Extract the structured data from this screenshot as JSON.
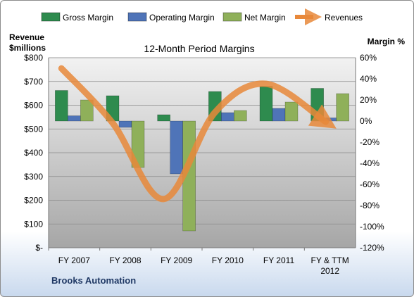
{
  "chart_data": {
    "type": "bar",
    "title": "12-Month Period Margins",
    "company": "Brooks Automation",
    "left_axis": {
      "label_line1": "Revenue",
      "label_line2": "$millions",
      "range": [
        0,
        800
      ],
      "step": 100,
      "tick_labels": [
        "$-",
        "$100",
        "$200",
        "$300",
        "$400",
        "$500",
        "$600",
        "$700",
        "$800"
      ]
    },
    "right_axis": {
      "label": "Margin %",
      "range": [
        -120,
        60
      ],
      "step": 20,
      "tick_labels": [
        "-120%",
        "-100%",
        "-80%",
        "-60%",
        "-40%",
        "-20%",
        "0%",
        "20%",
        "40%",
        "60%"
      ]
    },
    "categories": [
      "FY 2007",
      "FY 2008",
      "FY 2009",
      "FY 2010",
      "FY 2011",
      "FY & TTM 2012"
    ],
    "series": [
      {
        "name": "Gross Margin",
        "type": "bar",
        "axis": "right",
        "color": "#2e8b4e",
        "values": [
          29,
          24,
          6,
          28,
          33,
          31
        ]
      },
      {
        "name": "Operating Margin",
        "type": "bar",
        "axis": "right",
        "color": "#4f74b8",
        "values": [
          5,
          -6,
          -50,
          8,
          12,
          3
        ]
      },
      {
        "name": "Net Margin",
        "type": "bar",
        "axis": "right",
        "color": "#8fb05a",
        "values": [
          20,
          -44,
          -104,
          10,
          18,
          26
        ]
      },
      {
        "name": "Revenues",
        "type": "line",
        "axis": "left",
        "color": "#e8883a",
        "values": [
          755,
          525,
          205,
          570,
          690,
          530
        ]
      }
    ],
    "legend_position": "top",
    "grid": true
  }
}
